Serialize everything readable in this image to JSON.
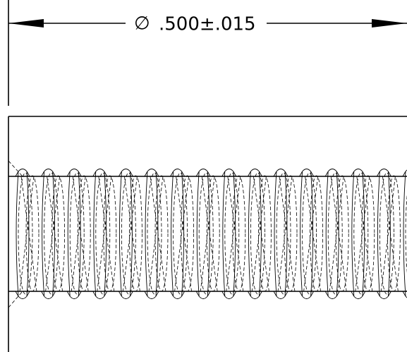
{
  "dimension": {
    "symbol": "∅",
    "value": ".500±.015"
  }
}
